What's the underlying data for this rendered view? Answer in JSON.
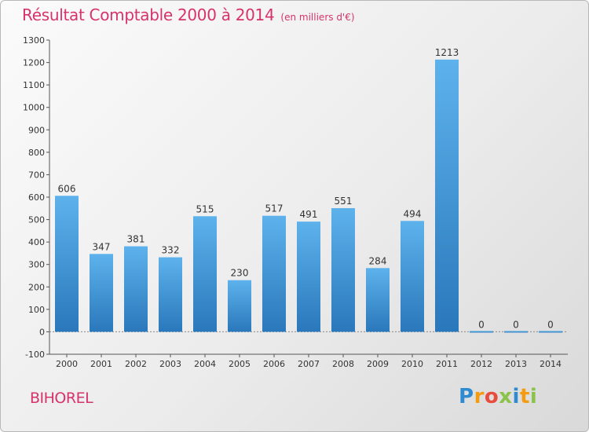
{
  "chart_data": {
    "type": "bar",
    "title": "Résultat Comptable 2000 à 2014",
    "subtitle": "(en milliers d'€)",
    "categories": [
      "2000",
      "2001",
      "2002",
      "2003",
      "2004",
      "2005",
      "2006",
      "2007",
      "2008",
      "2009",
      "2010",
      "2011",
      "2012",
      "2013",
      "2014"
    ],
    "values": [
      606,
      347,
      381,
      332,
      515,
      230,
      517,
      491,
      551,
      284,
      494,
      1213,
      0,
      0,
      0
    ],
    "ylim": [
      -100,
      1300
    ],
    "yticks": [
      -100,
      0,
      100,
      200,
      300,
      400,
      500,
      600,
      700,
      800,
      900,
      1000,
      1100,
      1200,
      1300
    ],
    "grid": false,
    "bar_color": "#4a9fdc"
  },
  "footer": {
    "commune": "BIHOREL"
  },
  "logo": {
    "letters": [
      "P",
      "r",
      "o",
      "x",
      "i",
      "t",
      "i"
    ],
    "colors": [
      "#2e8bd0",
      "#f39c12",
      "#e74c3c",
      "#8bc34a",
      "#2e8bd0",
      "#f39c12",
      "#8bc34a"
    ]
  },
  "colors": {
    "title": "#d6336c",
    "axis": "#555555"
  }
}
